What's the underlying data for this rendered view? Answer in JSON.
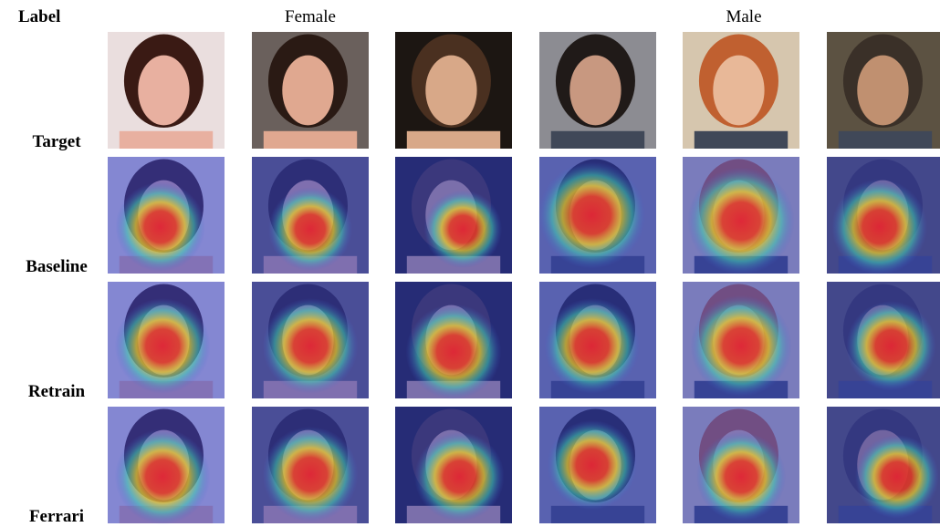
{
  "figure": {
    "corner_label": "Label",
    "column_groups": [
      "Female",
      "Male"
    ],
    "row_labels": [
      "Target",
      "Baseline",
      "Retrain",
      "Ferrari"
    ]
  }
}
